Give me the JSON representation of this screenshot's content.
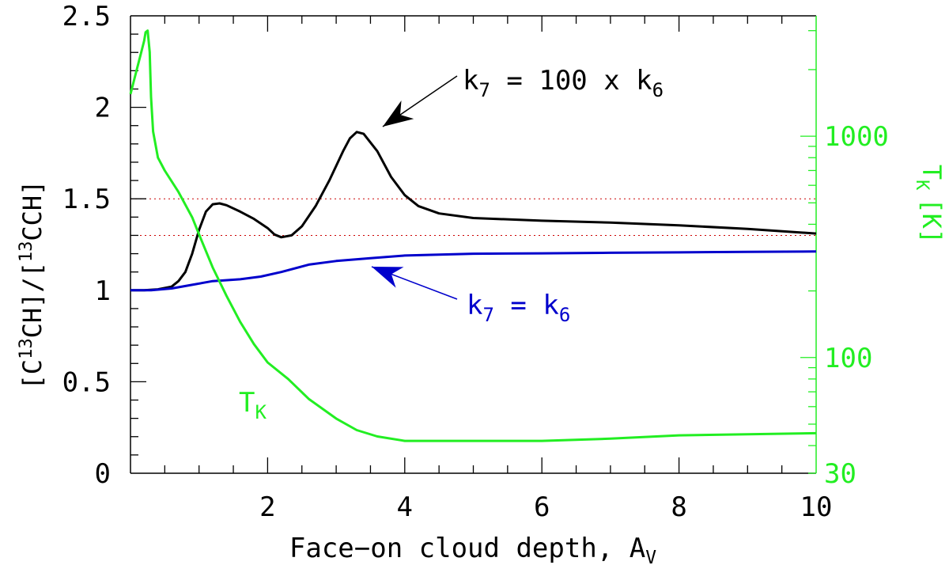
{
  "chart_data": {
    "type": "line",
    "xlabel": "Face−on cloud depth, A",
    "xlabel_sub": "V",
    "ylabel": "[C13CH]/[13CCH]",
    "ylabel_right": "T",
    "ylabel_right_sub": "K",
    "ylabel_right_unit": "[K]",
    "xlim": [
      0,
      10
    ],
    "ylim": [
      0,
      2.5
    ],
    "ylim_right": [
      30,
      3500
    ],
    "right_scale": "log",
    "x_ticks": [
      "2",
      "4",
      "6",
      "8",
      "10"
    ],
    "y_ticks": [
      "0",
      "0.5",
      "1",
      "1.5",
      "2",
      "2.5"
    ],
    "y_right_ticks": [
      "30",
      "100",
      "1000"
    ],
    "reference_lines": [
      1.3,
      1.5
    ],
    "series": [
      {
        "color": "#000000",
        "label": "k7 = 100 x k6",
        "points": [
          [
            0.0,
            1.0
          ],
          [
            0.2,
            1.0
          ],
          [
            0.4,
            1.005
          ],
          [
            0.6,
            1.02
          ],
          [
            0.7,
            1.05
          ],
          [
            0.8,
            1.1
          ],
          [
            0.9,
            1.2
          ],
          [
            1.0,
            1.33
          ],
          [
            1.1,
            1.43
          ],
          [
            1.2,
            1.47
          ],
          [
            1.3,
            1.475
          ],
          [
            1.4,
            1.465
          ],
          [
            1.6,
            1.43
          ],
          [
            1.8,
            1.39
          ],
          [
            2.0,
            1.34
          ],
          [
            2.1,
            1.305
          ],
          [
            2.2,
            1.29
          ],
          [
            2.35,
            1.3
          ],
          [
            2.5,
            1.35
          ],
          [
            2.7,
            1.46
          ],
          [
            2.9,
            1.6
          ],
          [
            3.1,
            1.76
          ],
          [
            3.2,
            1.83
          ],
          [
            3.3,
            1.865
          ],
          [
            3.4,
            1.855
          ],
          [
            3.6,
            1.76
          ],
          [
            3.8,
            1.62
          ],
          [
            4.0,
            1.52
          ],
          [
            4.2,
            1.46
          ],
          [
            4.5,
            1.42
          ],
          [
            5.0,
            1.395
          ],
          [
            6.0,
            1.38
          ],
          [
            7.0,
            1.37
          ],
          [
            8.0,
            1.355
          ],
          [
            9.0,
            1.335
          ],
          [
            10.0,
            1.31
          ]
        ]
      },
      {
        "color": "#0000cc",
        "label": "k7 = k6",
        "points": [
          [
            0.0,
            1.0
          ],
          [
            0.3,
            1.0
          ],
          [
            0.6,
            1.01
          ],
          [
            0.9,
            1.03
          ],
          [
            1.2,
            1.05
          ],
          [
            1.6,
            1.06
          ],
          [
            1.9,
            1.075
          ],
          [
            2.2,
            1.1
          ],
          [
            2.6,
            1.14
          ],
          [
            3.0,
            1.16
          ],
          [
            3.5,
            1.175
          ],
          [
            4.0,
            1.19
          ],
          [
            5.0,
            1.2
          ],
          [
            6.0,
            1.202
          ],
          [
            7.0,
            1.205
          ],
          [
            8.0,
            1.207
          ],
          [
            9.0,
            1.21
          ],
          [
            10.0,
            1.212
          ]
        ]
      },
      {
        "color": "#22ee22",
        "label": "TK",
        "axis": "right",
        "points": [
          [
            0.0,
            1550
          ],
          [
            0.1,
            2050
          ],
          [
            0.15,
            2350
          ],
          [
            0.2,
            2700
          ],
          [
            0.22,
            2950
          ],
          [
            0.25,
            3000
          ],
          [
            0.28,
            2400
          ],
          [
            0.3,
            1500
          ],
          [
            0.33,
            1050
          ],
          [
            0.4,
            800
          ],
          [
            0.5,
            700
          ],
          [
            0.7,
            560
          ],
          [
            0.9,
            430
          ],
          [
            1.0,
            360
          ],
          [
            1.2,
            255
          ],
          [
            1.4,
            190
          ],
          [
            1.6,
            145
          ],
          [
            1.8,
            115
          ],
          [
            2.0,
            95
          ],
          [
            2.3,
            80
          ],
          [
            2.6,
            65
          ],
          [
            3.0,
            53
          ],
          [
            3.3,
            47
          ],
          [
            3.6,
            44
          ],
          [
            4.0,
            42
          ],
          [
            5.0,
            42
          ],
          [
            6.0,
            42
          ],
          [
            7.0,
            43
          ],
          [
            8.0,
            44.5
          ],
          [
            9.0,
            45
          ],
          [
            10.0,
            45.5
          ]
        ]
      }
    ],
    "annotations": [
      {
        "text_main": "k",
        "sub1": "7",
        "text_mid": " = 100 x k",
        "sub2": "6",
        "color": "#000000",
        "arrow_color": "#000000"
      },
      {
        "text_main": "k",
        "sub1": "7",
        "text_mid": " = k",
        "sub2": "6",
        "color": "#0000cc",
        "arrow_color": "#0000cc"
      },
      {
        "text_main": "T",
        "sub1": "K",
        "color": "#22ee22"
      }
    ]
  }
}
